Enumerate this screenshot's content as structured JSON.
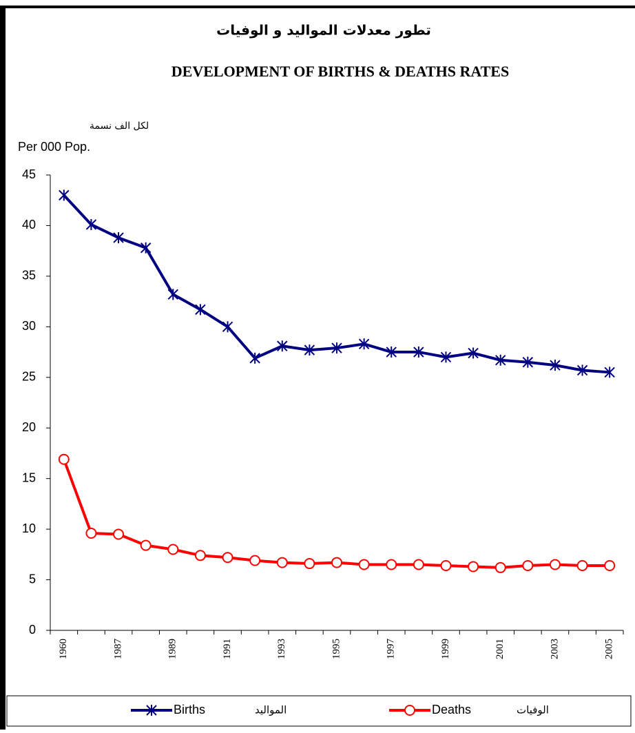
{
  "chart_data": {
    "type": "line",
    "title_ar": "تطور معدلات المواليد و الوفيات",
    "title": "DEVELOPMENT OF BIRTHS & DEATHS RATES",
    "ylabel_ar": "لكل الف نسمة",
    "ylabel": "Per 000 Pop.",
    "categories": [
      "1960",
      null,
      "1987",
      null,
      "1989",
      null,
      "1991",
      null,
      "1993",
      null,
      "1995",
      null,
      "1997",
      null,
      "1999",
      null,
      "2001",
      null,
      "2003",
      null,
      "2005"
    ],
    "series": [
      {
        "name": "Births",
        "name_ar": "المواليد",
        "color": "#000080",
        "marker": "asterisk",
        "values": [
          43,
          40.1,
          38.8,
          37.8,
          33.2,
          31.7,
          30,
          26.9,
          28.1,
          27.7,
          27.9,
          28.3,
          27.5,
          27.5,
          27,
          27.4,
          26.7,
          26.5,
          26.2,
          25.7,
          25.5
        ]
      },
      {
        "name": "Deaths",
        "name_ar": "الوفيات",
        "color": "#ff0000",
        "marker": "circle",
        "values": [
          16.9,
          9.6,
          9.5,
          8.4,
          8.0,
          7.4,
          7.2,
          6.9,
          6.7,
          6.6,
          6.7,
          6.5,
          6.5,
          6.5,
          6.4,
          6.3,
          6.2,
          6.4,
          6.5,
          6.4,
          6.4
        ]
      }
    ],
    "ylim": [
      0,
      45
    ],
    "yticks": [
      0,
      5,
      10,
      15,
      20,
      25,
      30,
      35,
      40,
      45
    ],
    "grid": false,
    "legend": "bottom"
  }
}
